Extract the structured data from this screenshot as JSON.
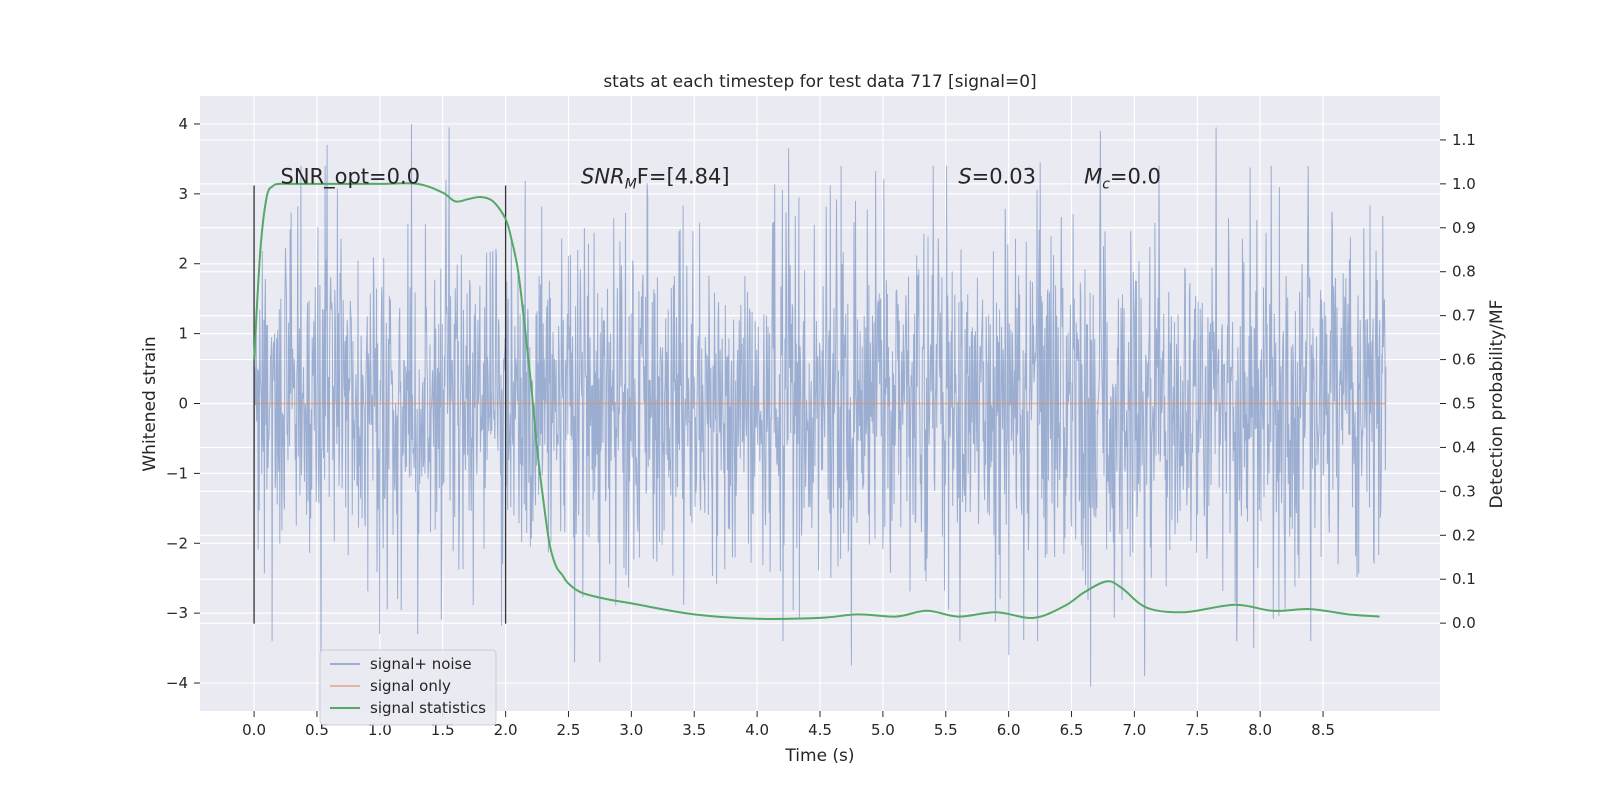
{
  "chart_data": {
    "type": "line",
    "title": "stats at each timestep for test data 717 [signal=0]",
    "xlabel": "Time (s)",
    "ylabel": "Whitened strain",
    "ylabel_right": "Detection probability/MF",
    "xlim": [
      -0.43,
      9.43
    ],
    "ylim": [
      -4.4,
      4.4
    ],
    "ylim_right": [
      -0.2,
      1.2
    ],
    "x_ticks": [
      0.0,
      0.5,
      1.0,
      1.5,
      2.0,
      2.5,
      3.0,
      3.5,
      4.0,
      4.5,
      5.0,
      5.5,
      6.0,
      6.5,
      7.0,
      7.5,
      8.0,
      8.5
    ],
    "x_tick_labels": [
      "0.0",
      "0.5",
      "1.0",
      "1.5",
      "2.0",
      "2.5",
      "3.0",
      "3.5",
      "4.0",
      "4.5",
      "5.0",
      "5.5",
      "6.0",
      "6.5",
      "7.0",
      "7.5",
      "8.0",
      "8.5"
    ],
    "y_ticks": [
      -4,
      -3,
      -2,
      -1,
      0,
      1,
      2,
      3,
      4
    ],
    "y_tick_labels": [
      "−4",
      "−3",
      "−2",
      "−1",
      "0",
      "1",
      "2",
      "3",
      "4"
    ],
    "y_right_ticks": [
      0.0,
      0.1,
      0.2,
      0.3,
      0.4,
      0.5,
      0.6,
      0.7,
      0.8,
      0.9,
      1.0,
      1.1
    ],
    "y_right_tick_labels": [
      "0.0",
      "0.1",
      "0.2",
      "0.3",
      "0.4",
      "0.5",
      "0.6",
      "0.7",
      "0.8",
      "0.9",
      "1.0",
      "1.1"
    ],
    "grid": true,
    "series": [
      {
        "name": "signal+ noise",
        "color": "#4c72b0",
        "axis": "left",
        "description": "whitened noise, time 0.0 to 9.0 s",
        "x_range": [
          0.0,
          9.0
        ],
        "typical_abs": 1.2,
        "extremes": [
          {
            "x": 0.53,
            "y": -3.7
          },
          {
            "x": 0.58,
            "y": 3.7
          },
          {
            "x": 1.0,
            "y": -3.3
          },
          {
            "x": 1.25,
            "y": 4.0
          },
          {
            "x": 1.3,
            "y": -3.3
          },
          {
            "x": 1.55,
            "y": 3.95
          },
          {
            "x": 2.55,
            "y": -3.7
          },
          {
            "x": 2.75,
            "y": -3.7
          },
          {
            "x": 4.25,
            "y": 3.65
          },
          {
            "x": 4.75,
            "y": -3.75
          },
          {
            "x": 5.4,
            "y": 3.4
          },
          {
            "x": 6.0,
            "y": -3.6
          },
          {
            "x": 6.25,
            "y": 3.45
          },
          {
            "x": 6.65,
            "y": -4.05
          },
          {
            "x": 6.73,
            "y": 3.9
          },
          {
            "x": 7.08,
            "y": -3.9
          },
          {
            "x": 7.65,
            "y": 3.95
          },
          {
            "x": 7.95,
            "y": -3.5
          }
        ]
      },
      {
        "name": "signal only",
        "color": "#dd8452",
        "axis": "left",
        "x": [
          0.0,
          9.0
        ],
        "y": [
          0.0,
          0.0
        ]
      },
      {
        "name": "signal statistics",
        "color": "#55a868",
        "axis": "right",
        "x": [
          0.0,
          0.05,
          0.1,
          0.15,
          0.2,
          0.3,
          0.5,
          0.8,
          1.0,
          1.3,
          1.5,
          1.6,
          1.7,
          1.8,
          1.9,
          2.0,
          2.05,
          2.1,
          2.15,
          2.2,
          2.25,
          2.3,
          2.35,
          2.4,
          2.45,
          2.5,
          2.6,
          2.8,
          3.0,
          3.5,
          4.0,
          4.5,
          4.8,
          5.1,
          5.35,
          5.6,
          5.9,
          6.2,
          6.45,
          6.6,
          6.78,
          6.9,
          7.1,
          7.4,
          7.8,
          8.1,
          8.4,
          8.7,
          8.95
        ],
        "y": [
          0.6,
          0.85,
          0.97,
          0.995,
          1.0,
          1.0,
          1.0,
          1.0,
          1.0,
          1.0,
          0.98,
          0.96,
          0.965,
          0.97,
          0.96,
          0.92,
          0.87,
          0.8,
          0.68,
          0.55,
          0.4,
          0.28,
          0.18,
          0.13,
          0.11,
          0.09,
          0.07,
          0.055,
          0.045,
          0.02,
          0.01,
          0.012,
          0.02,
          0.015,
          0.028,
          0.015,
          0.025,
          0.012,
          0.04,
          0.07,
          0.095,
          0.08,
          0.035,
          0.025,
          0.042,
          0.028,
          0.032,
          0.02,
          0.015
        ]
      }
    ],
    "vertical_lines": [
      {
        "x": 0.0,
        "y_range": [
          -3.15,
          3.12
        ],
        "color": "#333333"
      },
      {
        "x": 2.0,
        "y_range": [
          -3.15,
          3.12
        ],
        "color": "#333333"
      }
    ],
    "annotations": [
      {
        "id": "snr-opt",
        "text": "SNR_opt=0.0",
        "x": 0.21,
        "y": 3.15
      },
      {
        "id": "snr-mf",
        "prefix": "SNR",
        "sub": "M",
        "suffix": "F=[4.84]",
        "x": 2.6,
        "y": 3.15
      },
      {
        "id": "s-value",
        "prefix": "S",
        "suffix": "=0.03",
        "x": 5.6,
        "y": 3.15
      },
      {
        "id": "mc-value",
        "prefix": "M",
        "sub": "c",
        "suffix": "=0.0",
        "x": 6.6,
        "y": 3.15
      }
    ],
    "legend": {
      "location": "lower-left",
      "entries": [
        {
          "label": "signal+ noise",
          "color": "#4c72b0"
        },
        {
          "label": "signal only",
          "color": "#dd8452"
        },
        {
          "label": "signal statistics",
          "color": "#55a868"
        }
      ]
    },
    "plot_background": "#eaeaf2",
    "grid_color": "#ffffff"
  }
}
